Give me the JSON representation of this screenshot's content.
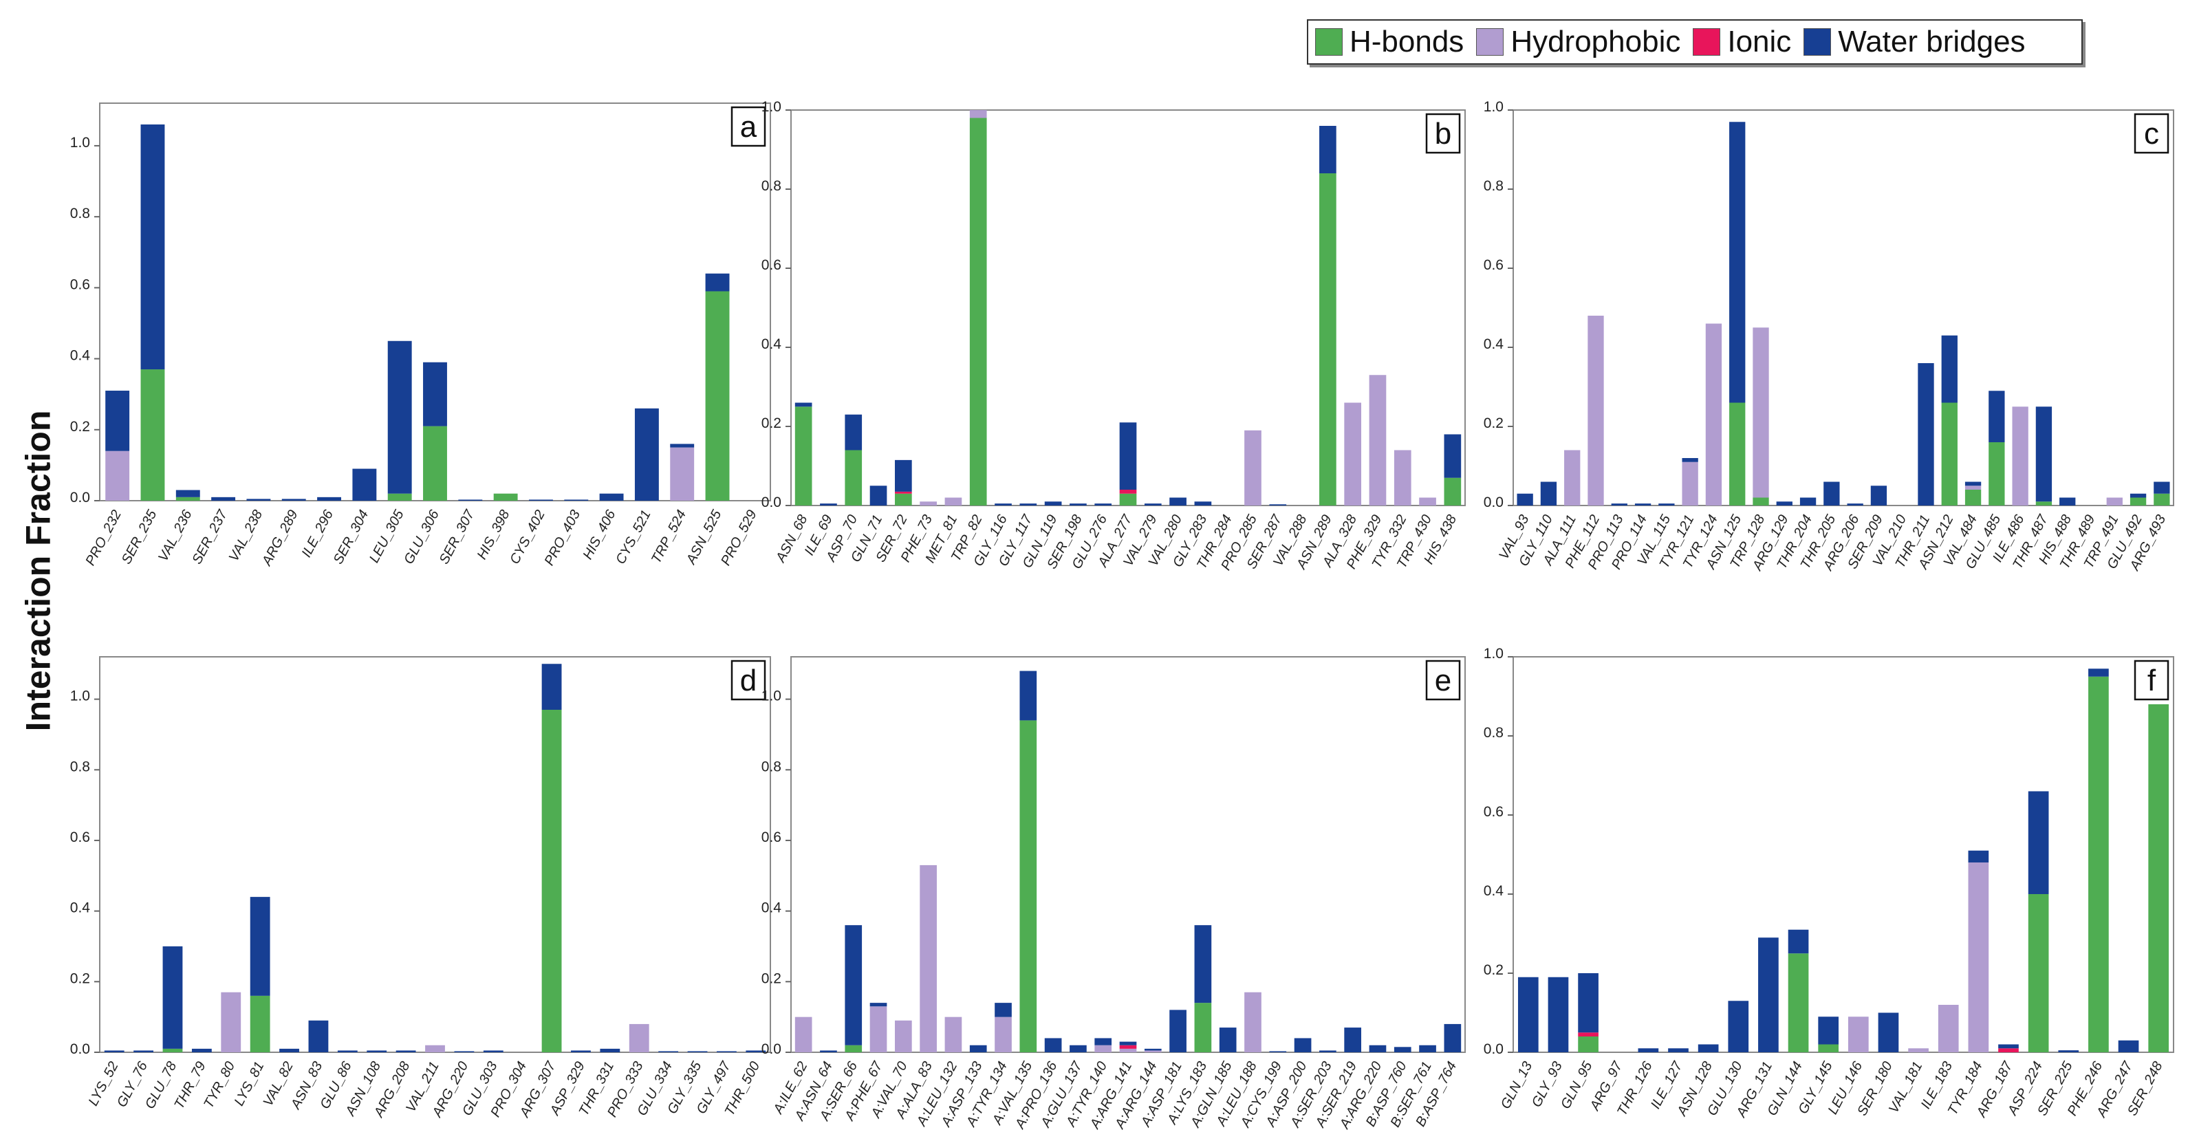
{
  "ylabel": "Interaction Fraction",
  "legend": [
    {
      "name": "H-bonds",
      "color": "#4fad52"
    },
    {
      "name": "Hydrophobic",
      "color": "#b19dd0"
    },
    {
      "name": "Ionic",
      "color": "#e8155b"
    },
    {
      "name": "Water bridges",
      "color": "#173f93"
    }
  ],
  "chart_data": [
    {
      "type": "bar",
      "label": "a",
      "ylim": [
        0,
        1.12
      ],
      "yticks": [
        "0.0",
        "0.2",
        "0.4",
        "0.6",
        "0.8",
        "1.0"
      ],
      "categories": [
        "PRO_232",
        "SER_235",
        "VAL_236",
        "SER_237",
        "VAL_238",
        "ARG_289",
        "ILE_296",
        "SER_304",
        "LEU_305",
        "GLU_306",
        "SER_307",
        "HIS_398",
        "CYS_402",
        "PRO_403",
        "HIS_406",
        "CYS_521",
        "TRP_524",
        "ASN_525",
        "PRO_529"
      ],
      "series": [
        {
          "name": "H-bonds",
          "values": [
            0,
            0.37,
            0.01,
            0,
            0,
            0,
            0,
            0,
            0.02,
            0.21,
            0,
            0.02,
            0,
            0,
            0,
            0,
            0,
            0.59,
            0
          ]
        },
        {
          "name": "Hydrophobic",
          "values": [
            0.14,
            0,
            0,
            0,
            0,
            0,
            0,
            0,
            0,
            0,
            0,
            0,
            0,
            0,
            0,
            0,
            0.15,
            0,
            0
          ]
        },
        {
          "name": "Ionic",
          "values": [
            0,
            0,
            0,
            0,
            0,
            0,
            0,
            0,
            0,
            0,
            0,
            0,
            0,
            0,
            0,
            0,
            0,
            0,
            0
          ]
        },
        {
          "name": "Water bridges",
          "values": [
            0.17,
            0.69,
            0.02,
            0.01,
            0.005,
            0.005,
            0.01,
            0.09,
            0.43,
            0.18,
            0.003,
            0,
            0.003,
            0.003,
            0.02,
            0.26,
            0.01,
            0.05,
            0
          ]
        }
      ]
    },
    {
      "type": "bar",
      "label": "b",
      "ylim": [
        0,
        1.0
      ],
      "yticks": [
        "0.0",
        "0.2",
        "0.4",
        "0.6",
        "0.8",
        "1.0"
      ],
      "categories": [
        "ASN_68",
        "ILE_69",
        "ASP_70",
        "GLN_71",
        "SER_72",
        "PHE_73",
        "MET_81",
        "TRP_82",
        "GLY_116",
        "GLY_117",
        "GLN_119",
        "SER_198",
        "GLU_276",
        "ALA_277",
        "VAL_279",
        "VAL_280",
        "GLY_283",
        "THR_284",
        "PRO_285",
        "SER_287",
        "VAL_288",
        "ASN_289",
        "ALA_328",
        "PHE_329",
        "TYR_332",
        "TRP_430",
        "HIS_438"
      ],
      "series": [
        {
          "name": "H-bonds",
          "values": [
            0.25,
            0,
            0.14,
            0,
            0.03,
            0,
            0,
            0.98,
            0,
            0,
            0,
            0,
            0,
            0.03,
            0,
            0,
            0,
            0,
            0,
            0,
            0,
            0.84,
            0,
            0,
            0,
            0,
            0.07
          ]
        },
        {
          "name": "Hydrophobic",
          "values": [
            0,
            0,
            0,
            0,
            0,
            0.01,
            0.02,
            0.02,
            0,
            0,
            0,
            0,
            0,
            0,
            0,
            0,
            0,
            0,
            0.19,
            0,
            0,
            0,
            0.26,
            0.33,
            0.14,
            0.02,
            0
          ]
        },
        {
          "name": "Ionic",
          "values": [
            0,
            0,
            0,
            0,
            0.005,
            0,
            0,
            0,
            0,
            0,
            0,
            0,
            0,
            0.01,
            0,
            0,
            0,
            0,
            0,
            0,
            0,
            0,
            0,
            0,
            0,
            0,
            0
          ]
        },
        {
          "name": "Water bridges",
          "values": [
            0.01,
            0.005,
            0.09,
            0.05,
            0.08,
            0,
            0,
            0,
            0.005,
            0.005,
            0.01,
            0.005,
            0.005,
            0.17,
            0.005,
            0.02,
            0.01,
            0,
            0,
            0.003,
            0,
            0.12,
            0,
            0,
            0,
            0,
            0.11
          ]
        }
      ]
    },
    {
      "type": "bar",
      "label": "c",
      "ylim": [
        0,
        1.0
      ],
      "yticks": [
        "0.0",
        "0.2",
        "0.4",
        "0.6",
        "0.8",
        "1.0"
      ],
      "categories": [
        "VAL_93",
        "GLY_110",
        "ALA_111",
        "PHE_112",
        "PRO_113",
        "PRO_114",
        "VAL_115",
        "TYR_121",
        "TYR_124",
        "ASN_125",
        "TRP_128",
        "ARG_129",
        "THR_204",
        "THR_205",
        "ARG_206",
        "SER_209",
        "VAL_210",
        "THR_211",
        "ASN_212",
        "VAL_484",
        "GLU_485",
        "ILE_486",
        "THR_487",
        "HIS_488",
        "THR_489",
        "TRP_491",
        "GLU_492",
        "ARG_493"
      ],
      "series": [
        {
          "name": "H-bonds",
          "values": [
            0,
            0,
            0,
            0,
            0,
            0,
            0,
            0,
            0,
            0.26,
            0.02,
            0,
            0,
            0,
            0,
            0,
            0,
            0,
            0.26,
            0.04,
            0.16,
            0,
            0.01,
            0,
            0,
            0,
            0.02,
            0.03
          ]
        },
        {
          "name": "Hydrophobic",
          "values": [
            0,
            0,
            0.14,
            0.48,
            0,
            0,
            0,
            0.11,
            0.46,
            0,
            0.43,
            0,
            0,
            0,
            0,
            0,
            0,
            0,
            0,
            0.01,
            0,
            0.25,
            0,
            0,
            0,
            0.02,
            0,
            0
          ]
        },
        {
          "name": "Ionic",
          "values": [
            0,
            0,
            0,
            0,
            0,
            0,
            0,
            0,
            0,
            0,
            0,
            0,
            0,
            0,
            0,
            0,
            0,
            0,
            0,
            0,
            0,
            0,
            0,
            0,
            0,
            0,
            0,
            0
          ]
        },
        {
          "name": "Water bridges",
          "values": [
            0.03,
            0.06,
            0,
            0,
            0.005,
            0.005,
            0.005,
            0.01,
            0,
            0.71,
            0,
            0.01,
            0.02,
            0.06,
            0.005,
            0.05,
            0,
            0.36,
            0.17,
            0.01,
            0.13,
            0,
            0.24,
            0.02,
            0,
            0,
            0.01,
            0.03
          ]
        }
      ]
    },
    {
      "type": "bar",
      "label": "d",
      "ylim": [
        0,
        1.12
      ],
      "yticks": [
        "0.0",
        "0.2",
        "0.4",
        "0.6",
        "0.8",
        "1.0"
      ],
      "categories": [
        "LYS_52",
        "GLY_76",
        "GLU_78",
        "THR_79",
        "TYR_80",
        "LYS_81",
        "VAL_82",
        "ASN_83",
        "GLU_86",
        "ASN_108",
        "ARG_208",
        "VAL_211",
        "ARG_220",
        "GLU_303",
        "PRO_304",
        "ARG_307",
        "ASP_329",
        "THR_331",
        "PRO_333",
        "GLU_334",
        "GLY_335",
        "GLY_497",
        "THR_500"
      ],
      "series": [
        {
          "name": "H-bonds",
          "values": [
            0,
            0,
            0.01,
            0,
            0,
            0.16,
            0,
            0,
            0,
            0,
            0,
            0,
            0,
            0,
            0,
            0.97,
            0,
            0,
            0,
            0,
            0,
            0,
            0
          ]
        },
        {
          "name": "Hydrophobic",
          "values": [
            0,
            0,
            0,
            0,
            0.17,
            0,
            0,
            0,
            0,
            0,
            0,
            0.02,
            0,
            0,
            0,
            0,
            0,
            0,
            0.08,
            0,
            0,
            0,
            0
          ]
        },
        {
          "name": "Ionic",
          "values": [
            0,
            0,
            0,
            0,
            0,
            0,
            0,
            0,
            0,
            0,
            0,
            0,
            0,
            0,
            0,
            0,
            0,
            0,
            0,
            0,
            0,
            0,
            0
          ]
        },
        {
          "name": "Water bridges",
          "values": [
            0.005,
            0.005,
            0.29,
            0.01,
            0,
            0.28,
            0.01,
            0.09,
            0.005,
            0.005,
            0.005,
            0,
            0.003,
            0.005,
            0,
            0.13,
            0.005,
            0.01,
            0,
            0.003,
            0.003,
            0.003,
            0.005
          ]
        }
      ]
    },
    {
      "type": "bar",
      "label": "e",
      "ylim": [
        0,
        1.12
      ],
      "yticks": [
        "0.0",
        "0.2",
        "0.4",
        "0.6",
        "0.8",
        "1.0"
      ],
      "categories": [
        "A:ILE_62",
        "A:ASN_64",
        "A:SER_66",
        "A:PHE_67",
        "A:VAL_70",
        "A:ALA_83",
        "A:LEU_132",
        "A:ASP_133",
        "A:TYR_134",
        "A:VAL_135",
        "A:PRO_136",
        "A:GLU_137",
        "A:TYR_140",
        "A:ARG_141",
        "A:ARG_144",
        "A:ASP_181",
        "A:LYS_183",
        "A:GLN_185",
        "A:LEU_188",
        "A:CYS_199",
        "A:ASP_200",
        "A:SER_203",
        "A:SER_219",
        "A:ARG_220",
        "B:ASP_760",
        "B:SER_761",
        "B:ASP_764"
      ],
      "series": [
        {
          "name": "H-bonds",
          "values": [
            0,
            0,
            0.02,
            0,
            0,
            0,
            0,
            0,
            0,
            0.94,
            0,
            0,
            0,
            0,
            0,
            0,
            0.14,
            0,
            0,
            0,
            0,
            0,
            0,
            0,
            0,
            0,
            0
          ]
        },
        {
          "name": "Hydrophobic",
          "values": [
            0.1,
            0,
            0,
            0.13,
            0.09,
            0.53,
            0.1,
            0,
            0.1,
            0,
            0,
            0,
            0.02,
            0.01,
            0.005,
            0,
            0,
            0,
            0.17,
            0,
            0,
            0,
            0,
            0,
            0,
            0,
            0
          ]
        },
        {
          "name": "Ionic",
          "values": [
            0,
            0,
            0,
            0,
            0,
            0,
            0,
            0,
            0,
            0,
            0,
            0,
            0,
            0.01,
            0,
            0,
            0,
            0,
            0,
            0,
            0,
            0,
            0,
            0,
            0,
            0,
            0
          ]
        },
        {
          "name": "Water bridges",
          "values": [
            0,
            0.005,
            0.34,
            0.01,
            0,
            0,
            0,
            0.02,
            0.04,
            0.14,
            0.04,
            0.02,
            0.02,
            0.01,
            0.005,
            0.12,
            0.22,
            0.07,
            0,
            0.003,
            0.04,
            0.005,
            0.07,
            0.02,
            0.015,
            0.02,
            0.08
          ]
        }
      ]
    },
    {
      "type": "bar",
      "label": "f",
      "ylim": [
        0,
        1.0
      ],
      "yticks": [
        "0.0",
        "0.2",
        "0.4",
        "0.6",
        "0.8",
        "1.0"
      ],
      "categories": [
        "GLN_13",
        "GLY_93",
        "GLN_95",
        "ARG_97",
        "THR_126",
        "ILE_127",
        "ASN_128",
        "GLU_130",
        "ARG_131",
        "GLN_144",
        "GLY_145",
        "LEU_146",
        "SER_180",
        "VAL_181",
        "ILE_183",
        "TYR_184",
        "ARG_187",
        "ASP_224",
        "SER_225",
        "PHE_246",
        "ARG_247",
        "SER_248"
      ],
      "series": [
        {
          "name": "H-bonds",
          "values": [
            0,
            0,
            0.04,
            0,
            0,
            0,
            0,
            0,
            0,
            0.25,
            0.02,
            0,
            0,
            0,
            0,
            0,
            0,
            0.4,
            0,
            0.95,
            0,
            0.88
          ]
        },
        {
          "name": "Hydrophobic",
          "values": [
            0,
            0,
            0,
            0,
            0,
            0,
            0,
            0,
            0,
            0,
            0,
            0.09,
            0,
            0.01,
            0.12,
            0.48,
            0,
            0,
            0,
            0,
            0,
            0
          ]
        },
        {
          "name": "Ionic",
          "values": [
            0,
            0,
            0.01,
            0,
            0,
            0,
            0,
            0,
            0,
            0,
            0,
            0,
            0,
            0,
            0,
            0,
            0.01,
            0,
            0,
            0,
            0,
            0
          ]
        },
        {
          "name": "Water bridges",
          "values": [
            0.19,
            0.19,
            0.15,
            0,
            0.01,
            0.01,
            0.02,
            0.13,
            0.29,
            0.06,
            0.07,
            0,
            0.1,
            0,
            0,
            0.03,
            0.01,
            0.26,
            0.005,
            0.02,
            0.03,
            0
          ]
        }
      ]
    }
  ]
}
